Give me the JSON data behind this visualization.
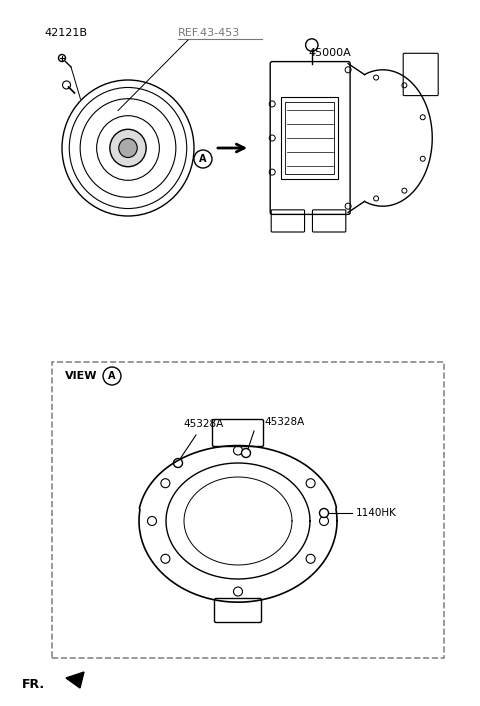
{
  "bg_color": "#ffffff",
  "fig_width": 4.8,
  "fig_height": 7.06,
  "dpi": 100,
  "labels": {
    "bolt": "42121B",
    "ref": "REF.43-453",
    "transaxle": "45000A",
    "view_label": "VIEW",
    "gasket1": "45328A",
    "gasket2": "45328A",
    "bolt2": "1140HK",
    "fr": "FR."
  },
  "colors": {
    "line": "#000000",
    "dashed_box": "#888888",
    "ref_text": "#777777",
    "label_text": "#000000"
  }
}
